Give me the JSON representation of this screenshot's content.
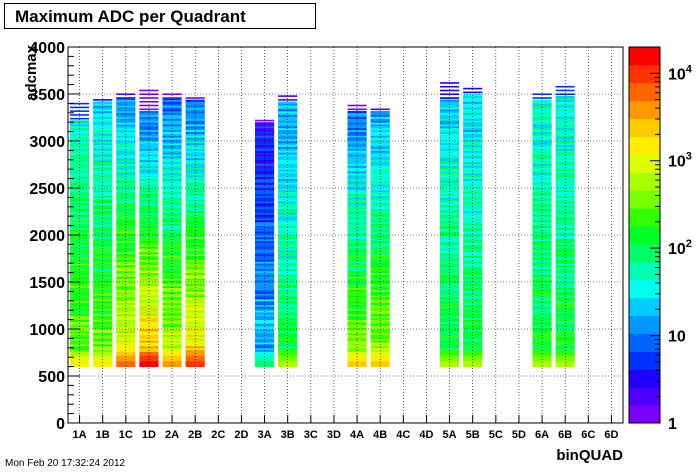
{
  "title": "Maximum ADC per Quadrant",
  "timestamp": "Mon Feb 20 17:32:24 2012",
  "chart_data": {
    "type": "heatmap",
    "title": "Maximum ADC per Quadrant",
    "xlabel": "binQUAD",
    "ylabel": "adcmax",
    "categories": [
      "1A",
      "1B",
      "1C",
      "1D",
      "2A",
      "2B",
      "2C",
      "2D",
      "3A",
      "3B",
      "3C",
      "3D",
      "4A",
      "4B",
      "4C",
      "4D",
      "5A",
      "5B",
      "5C",
      "5D",
      "6A",
      "6B",
      "6C",
      "6D"
    ],
    "y_ticks": [
      "0",
      "500",
      "1000",
      "1500",
      "2000",
      "2500",
      "3000",
      "3500",
      "4000"
    ],
    "ylim": [
      0,
      4000
    ],
    "z_scale": "log",
    "z_range": [
      1,
      20000
    ],
    "z_ticks": [
      {
        "value": 1,
        "label": "1"
      },
      {
        "value": 10,
        "label": "10"
      },
      {
        "value": 100,
        "label": "10^2"
      },
      {
        "value": 1000,
        "label": "10^3"
      },
      {
        "value": 10000,
        "label": "10^4"
      }
    ],
    "grid": true,
    "colorbar": "right",
    "palette": [
      "#7b00ff",
      "#4c00ff",
      "#1f00ff",
      "#0033ff",
      "#0066ff",
      "#0099ff",
      "#00ccff",
      "#00ffee",
      "#00ffb0",
      "#00ff66",
      "#00ff22",
      "#33ff00",
      "#77ff00",
      "#aaff00",
      "#ddff00",
      "#ffee00",
      "#ffcc00",
      "#ff9900",
      "#ff6600",
      "#ff3300",
      "#ff0000"
    ],
    "bins": [
      {
        "category": "1A",
        "ymin": 600,
        "ymax": 3420,
        "peak": 700,
        "min_level": 7,
        "max_level": 15,
        "sparse_above": 3200
      },
      {
        "category": "1B",
        "ymin": 600,
        "ymax": 3480,
        "peak": 800,
        "min_level": 6,
        "max_level": 15,
        "sparse_above": 3400
      },
      {
        "category": "1C",
        "ymin": 600,
        "ymax": 3520,
        "peak": 2000,
        "min_level": 5,
        "max_level": 18,
        "sparse_above": 3450
      },
      {
        "category": "1D",
        "ymin": 600,
        "ymax": 3550,
        "peak": 1000,
        "min_level": 3,
        "max_level": 20,
        "sparse_above": 3300
      },
      {
        "category": "2A",
        "ymin": 600,
        "ymax": 3530,
        "peak": 1500,
        "min_level": 4,
        "max_level": 17,
        "sparse_above": 3450
      },
      {
        "category": "2B",
        "ymin": 600,
        "ymax": 3490,
        "peak": 1100,
        "min_level": 4,
        "max_level": 19,
        "sparse_above": 3420
      },
      {
        "category": "3A",
        "ymin": 600,
        "ymax": 3260,
        "peak": 1100,
        "min_level": 2,
        "max_level": 9,
        "sparse_above": 3180
      },
      {
        "category": "3B",
        "ymin": 600,
        "ymax": 3490,
        "peak": 1500,
        "min_level": 5,
        "max_level": 13,
        "sparse_above": 3400
      },
      {
        "category": "4A",
        "ymin": 600,
        "ymax": 3400,
        "peak": 1500,
        "min_level": 4,
        "max_level": 16,
        "sparse_above": 3300
      },
      {
        "category": "4B",
        "ymin": 600,
        "ymax": 3360,
        "peak": 1500,
        "min_level": 5,
        "max_level": 16,
        "sparse_above": 3300
      },
      {
        "category": "5A",
        "ymin": 600,
        "ymax": 3650,
        "peak": 1500,
        "min_level": 6,
        "max_level": 13,
        "sparse_above": 3450
      },
      {
        "category": "5B",
        "ymin": 600,
        "ymax": 3580,
        "peak": 1500,
        "min_level": 6,
        "max_level": 13,
        "sparse_above": 3480
      },
      {
        "category": "6A",
        "ymin": 600,
        "ymax": 3520,
        "peak": 1500,
        "min_level": 7,
        "max_level": 13,
        "sparse_above": 3420
      },
      {
        "category": "6B",
        "ymin": 600,
        "ymax": 3620,
        "peak": 1500,
        "min_level": 7,
        "max_level": 13,
        "sparse_above": 3460
      }
    ]
  }
}
